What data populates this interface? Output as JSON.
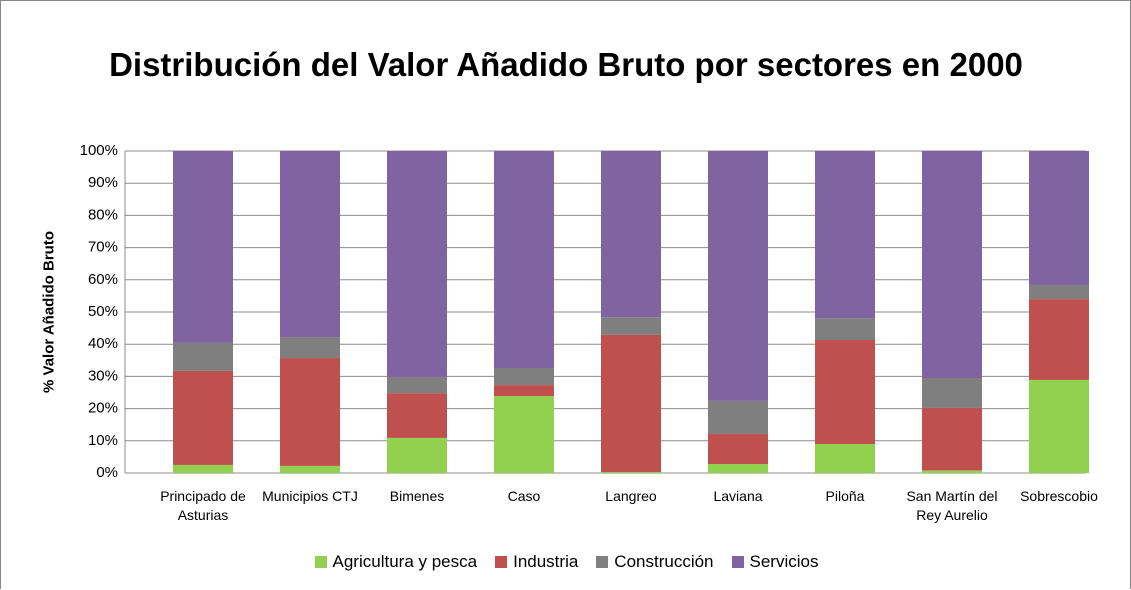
{
  "chart_data": {
    "type": "stacked_bar",
    "title": "Distribución del Valor Añadido Bruto por sectores en 2000",
    "y_label": "% Valor Añadido Bruto",
    "categories": [
      "Principado de Asturias",
      "Municipios CTJ",
      "Bimenes",
      "Caso",
      "Langreo",
      "Laviana",
      "Piloña",
      "San Martín del Rey Aurelio",
      "Sobrescobio"
    ],
    "series": [
      {
        "name": "Agricultura y pesca",
        "color": "#92d050",
        "values": [
          2.5,
          2.2,
          10.9,
          23.9,
          0.3,
          2.8,
          9.0,
          0.8,
          28.9
        ]
      },
      {
        "name": "Industria",
        "color": "#c0504d",
        "values": [
          29.2,
          33.5,
          13.9,
          3.4,
          42.6,
          9.3,
          32.3,
          19.4,
          25.1
        ]
      },
      {
        "name": "Construcción",
        "color": "#7f7f7f",
        "values": [
          8.7,
          6.5,
          5.0,
          5.3,
          5.5,
          10.3,
          6.8,
          9.3,
          4.4
        ]
      },
      {
        "name": "Servicios",
        "color": "#8064a2",
        "values": [
          59.6,
          57.8,
          70.2,
          67.4,
          51.6,
          77.6,
          51.9,
          70.5,
          41.6
        ]
      }
    ],
    "ylim": [
      0,
      100
    ],
    "yticks": [
      {
        "value": 0,
        "label": "0%"
      },
      {
        "value": 10,
        "label": "10%"
      },
      {
        "value": 20,
        "label": "20%"
      },
      {
        "value": 30,
        "label": "30%"
      },
      {
        "value": 40,
        "label": "40%"
      },
      {
        "value": 50,
        "label": "50%"
      },
      {
        "value": 60,
        "label": "60%"
      },
      {
        "value": 70,
        "label": "70%"
      },
      {
        "value": 80,
        "label": "80%"
      },
      {
        "value": 90,
        "label": "90%"
      },
      {
        "value": 100,
        "label": "100%"
      }
    ],
    "grid": true,
    "legend": "bottom"
  }
}
